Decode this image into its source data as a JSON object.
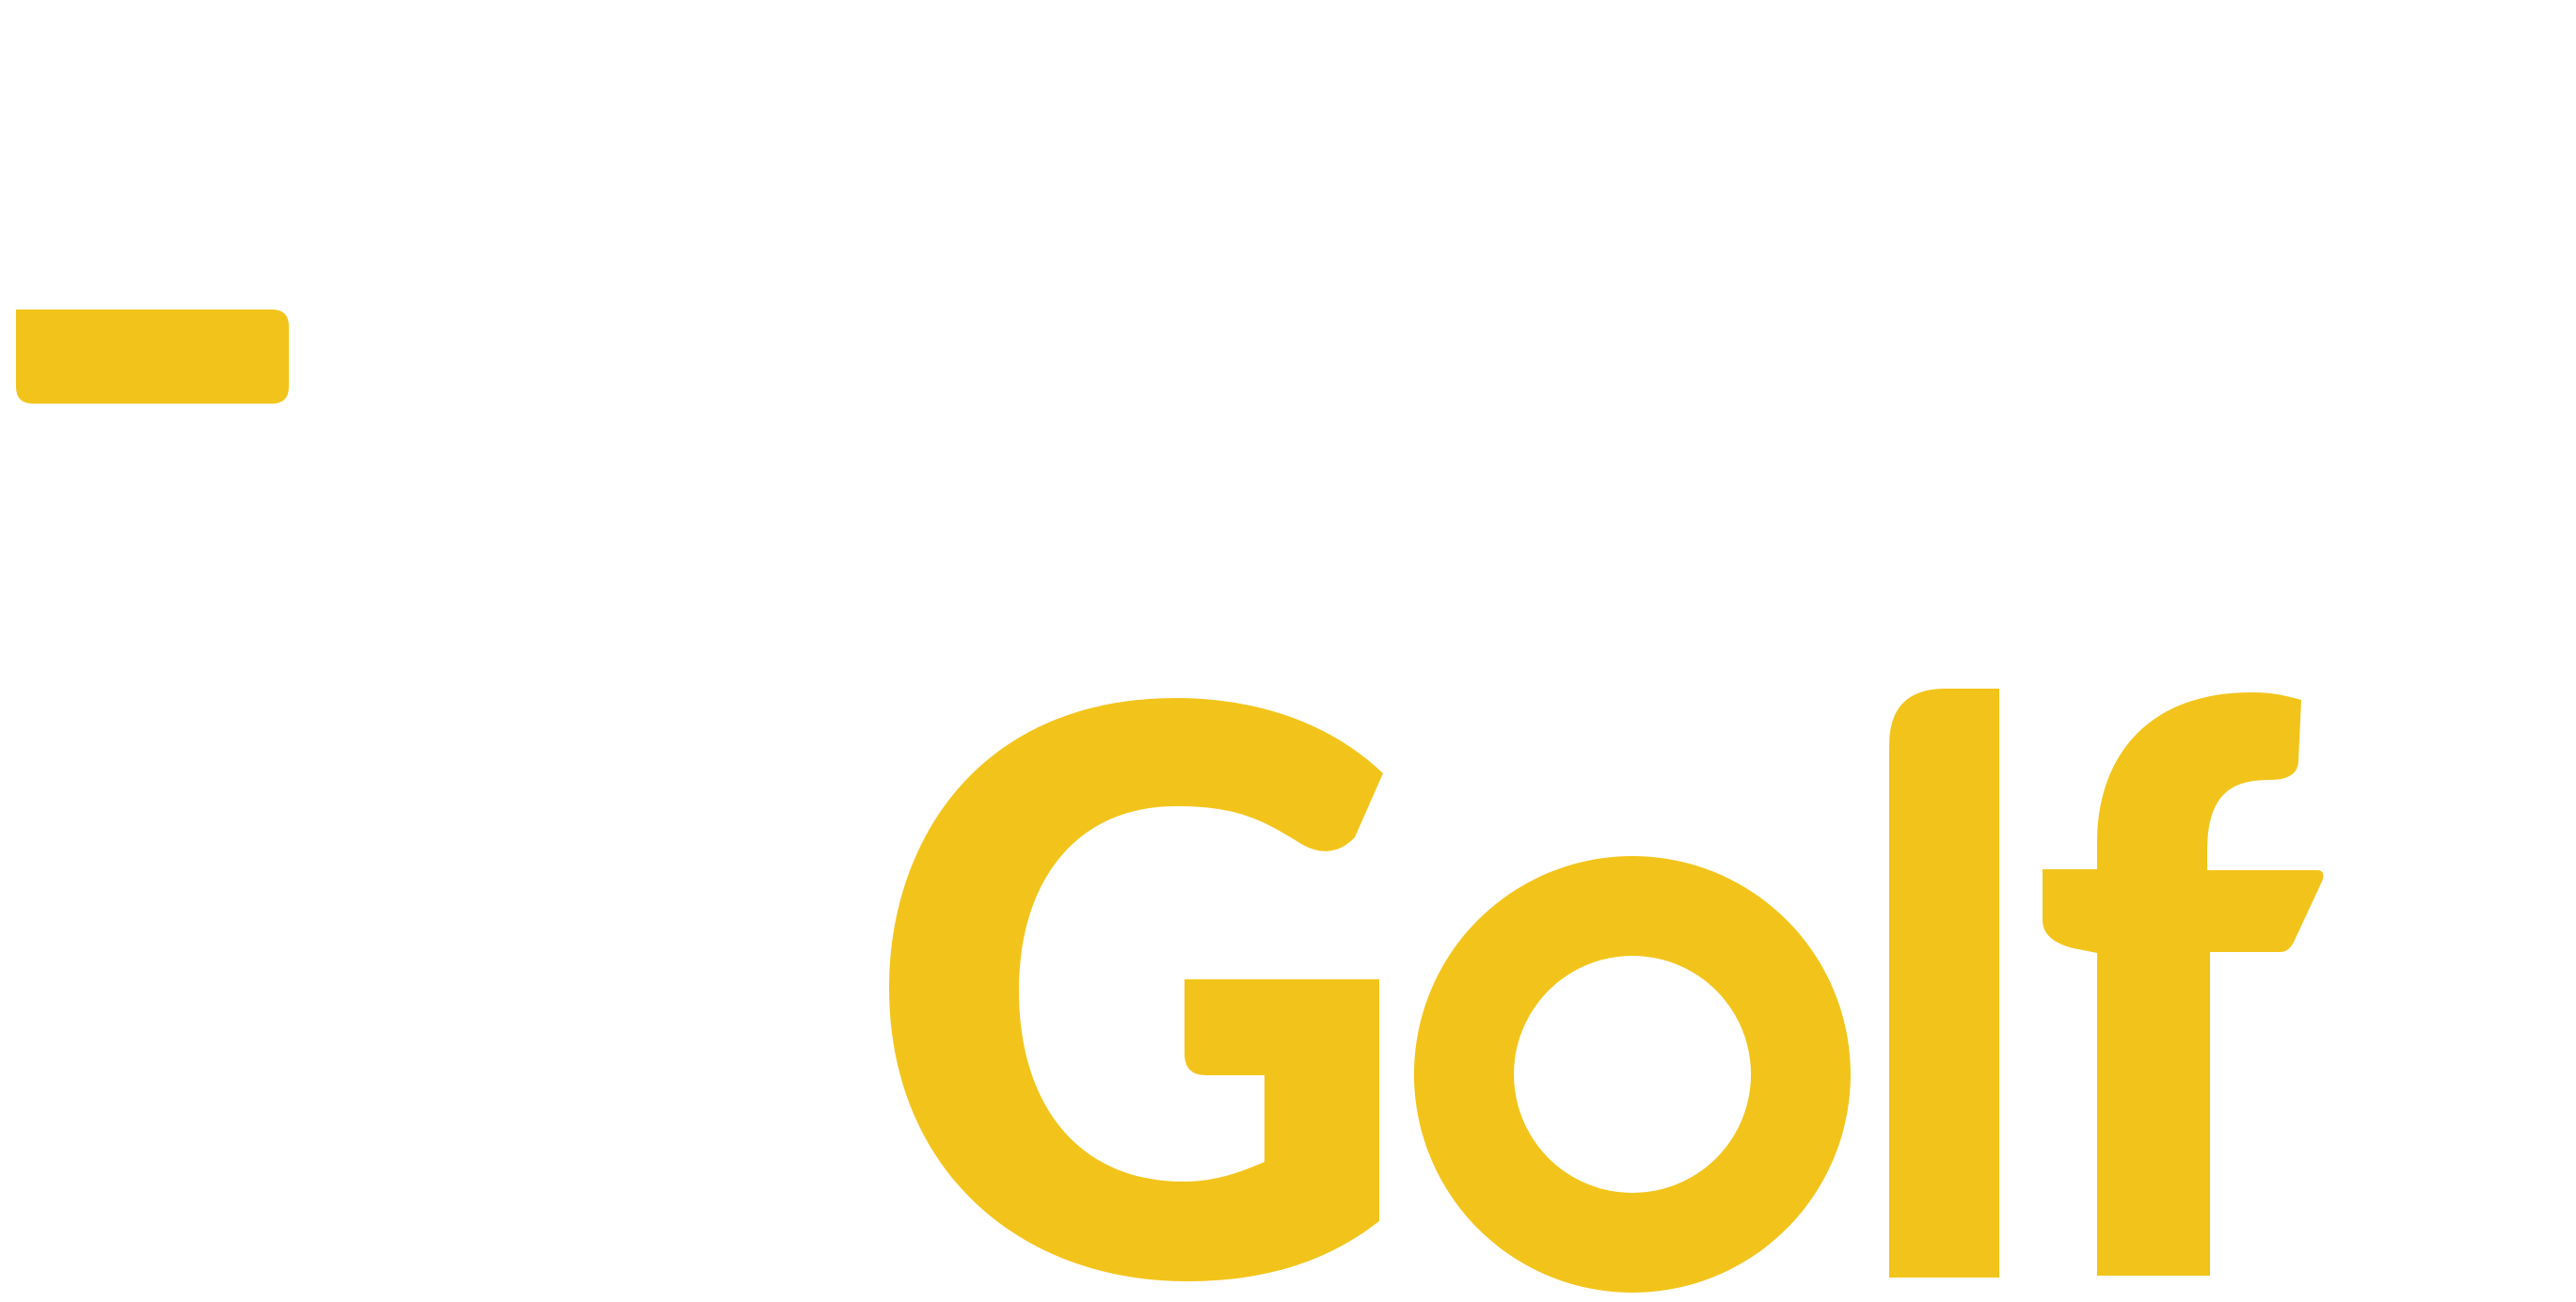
{
  "logo": {
    "wordmark": "Golf",
    "accent_color": "#F2C41B",
    "background_color": "#FFFFFF",
    "elements": [
      "dash-bar-icon",
      "letter-G",
      "letter-o",
      "letter-l",
      "letter-f"
    ]
  }
}
